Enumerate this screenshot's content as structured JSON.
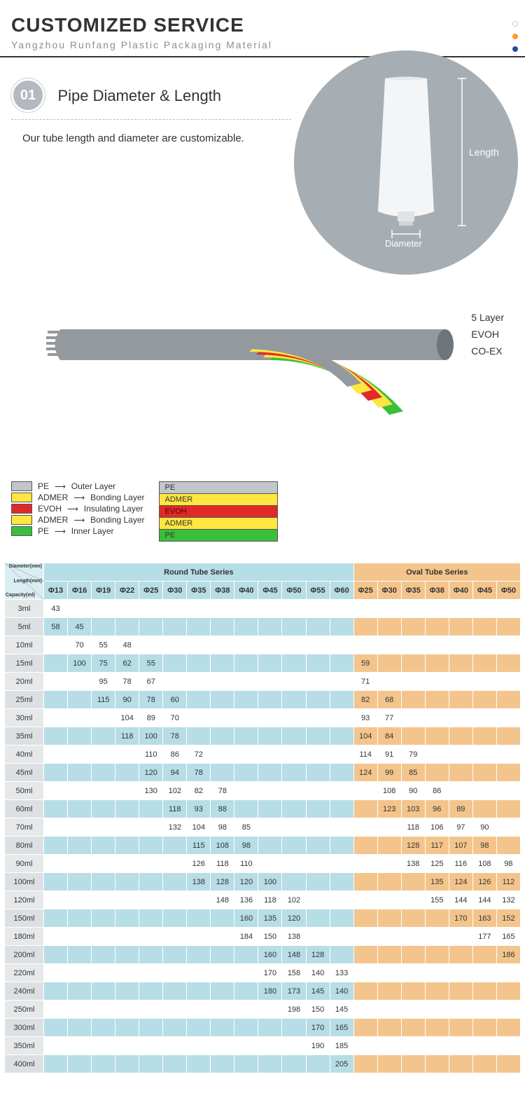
{
  "header": {
    "title": "CUSTOMIZED SERVICE",
    "subtitle": "Yangzhou Runfang Plastic Packaging Material",
    "dot_colors": [
      "#c9cdd1",
      "#ff9933",
      "#1e4fa3"
    ]
  },
  "section1": {
    "badge": "01",
    "title": "Pipe Diameter & Length",
    "desc": "Our tube length and diameter are customizable.",
    "fig_length": "Length",
    "fig_diameter": "Diameter",
    "circle_color": "#a6aeb3"
  },
  "layers": {
    "side_labels": [
      "5 Layer",
      "EVOH",
      "CO-EX"
    ],
    "stack": [
      {
        "label": "PE",
        "color": "#c2c6ca"
      },
      {
        "label": "ADMER",
        "color": "#ffe640"
      },
      {
        "label": "EVOH",
        "color": "#e02a2a"
      },
      {
        "label": "ADMER",
        "color": "#ffe640"
      },
      {
        "label": "PE",
        "color": "#3bbf3b"
      }
    ],
    "legend": [
      {
        "mat": "PE",
        "name": "Outer Layer",
        "color": "#c2c6ca"
      },
      {
        "mat": "ADMER",
        "name": "Bonding Layer",
        "color": "#ffe640"
      },
      {
        "mat": "EVOH",
        "name": "Insulating Layer",
        "color": "#e02a2a"
      },
      {
        "mat": "ADMER",
        "name": "Bonding Layer",
        "color": "#ffe640"
      },
      {
        "mat": "PE",
        "name": "Inner Layer",
        "color": "#3bbf3b"
      }
    ]
  },
  "table": {
    "corner_labels": [
      "Diameter(mm)",
      "Length(mm)",
      "Capacity(ml)"
    ],
    "groups": [
      {
        "name": "Round Tube Series",
        "diameters": [
          "Φ13",
          "Φ16",
          "Φ19",
          "Φ22",
          "Φ25",
          "Φ30",
          "Φ35",
          "Φ38",
          "Φ40",
          "Φ45",
          "Φ50",
          "Φ55",
          "Φ60"
        ],
        "alt_color": "#b7dde6"
      },
      {
        "name": "Oval Tube Series",
        "diameters": [
          "Φ25",
          "Φ30",
          "Φ35",
          "Φ38",
          "Φ40",
          "Φ45",
          "Φ50"
        ],
        "alt_color": "#f3c58c"
      }
    ],
    "capacities": [
      "3ml",
      "5ml",
      "10ml",
      "15ml",
      "20ml",
      "25ml",
      "30ml",
      "35ml",
      "40ml",
      "45ml",
      "50ml",
      "60ml",
      "70ml",
      "80ml",
      "90ml",
      "100ml",
      "120ml",
      "150ml",
      "180ml",
      "200ml",
      "220ml",
      "240ml",
      "250ml",
      "300ml",
      "350ml",
      "400ml"
    ],
    "round": [
      [
        "43",
        "",
        "",
        "",
        "",
        "",
        "",
        "",
        "",
        "",
        "",
        "",
        ""
      ],
      [
        "58",
        "45",
        "",
        "",
        "",
        "",
        "",
        "",
        "",
        "",
        "",
        "",
        ""
      ],
      [
        "",
        "70",
        "55",
        "48",
        "",
        "",
        "",
        "",
        "",
        "",
        "",
        "",
        ""
      ],
      [
        "",
        "100",
        "75",
        "62",
        "55",
        "",
        "",
        "",
        "",
        "",
        "",
        "",
        ""
      ],
      [
        "",
        "",
        "95",
        "78",
        "67",
        "",
        "",
        "",
        "",
        "",
        "",
        "",
        ""
      ],
      [
        "",
        "",
        "115",
        "90",
        "78",
        "60",
        "",
        "",
        "",
        "",
        "",
        "",
        ""
      ],
      [
        "",
        "",
        "",
        "104",
        "89",
        "70",
        "",
        "",
        "",
        "",
        "",
        "",
        ""
      ],
      [
        "",
        "",
        "",
        "118",
        "100",
        "78",
        "",
        "",
        "",
        "",
        "",
        "",
        ""
      ],
      [
        "",
        "",
        "",
        "",
        "110",
        "86",
        "72",
        "",
        "",
        "",
        "",
        "",
        ""
      ],
      [
        "",
        "",
        "",
        "",
        "120",
        "94",
        "78",
        "",
        "",
        "",
        "",
        "",
        ""
      ],
      [
        "",
        "",
        "",
        "",
        "130",
        "102",
        "82",
        "78",
        "",
        "",
        "",
        "",
        ""
      ],
      [
        "",
        "",
        "",
        "",
        "",
        "118",
        "93",
        "88",
        "",
        "",
        "",
        "",
        ""
      ],
      [
        "",
        "",
        "",
        "",
        "",
        "132",
        "104",
        "98",
        "85",
        "",
        "",
        "",
        ""
      ],
      [
        "",
        "",
        "",
        "",
        "",
        "",
        "115",
        "108",
        "98",
        "",
        "",
        "",
        ""
      ],
      [
        "",
        "",
        "",
        "",
        "",
        "",
        "126",
        "118",
        "110",
        "",
        "",
        "",
        ""
      ],
      [
        "",
        "",
        "",
        "",
        "",
        "",
        "138",
        "128",
        "120",
        "100",
        "",
        "",
        ""
      ],
      [
        "",
        "",
        "",
        "",
        "",
        "",
        "",
        "148",
        "136",
        "118",
        "102",
        "",
        ""
      ],
      [
        "",
        "",
        "",
        "",
        "",
        "",
        "",
        "",
        "160",
        "135",
        "120",
        "",
        ""
      ],
      [
        "",
        "",
        "",
        "",
        "",
        "",
        "",
        "",
        "184",
        "150",
        "138",
        "",
        ""
      ],
      [
        "",
        "",
        "",
        "",
        "",
        "",
        "",
        "",
        "",
        "160",
        "148",
        "128",
        ""
      ],
      [
        "",
        "",
        "",
        "",
        "",
        "",
        "",
        "",
        "",
        "170",
        "158",
        "140",
        "133"
      ],
      [
        "",
        "",
        "",
        "",
        "",
        "",
        "",
        "",
        "",
        "180",
        "173",
        "145",
        "140"
      ],
      [
        "",
        "",
        "",
        "",
        "",
        "",
        "",
        "",
        "",
        "",
        "198",
        "150",
        "145"
      ],
      [
        "",
        "",
        "",
        "",
        "",
        "",
        "",
        "",
        "",
        "",
        "",
        "170",
        "165"
      ],
      [
        "",
        "",
        "",
        "",
        "",
        "",
        "",
        "",
        "",
        "",
        "",
        "190",
        "185"
      ],
      [
        "",
        "",
        "",
        "",
        "",
        "",
        "",
        "",
        "",
        "",
        "",
        "",
        "205"
      ]
    ],
    "oval": [
      [
        "",
        "",
        "",
        "",
        "",
        "",
        ""
      ],
      [
        "",
        "",
        "",
        "",
        "",
        "",
        ""
      ],
      [
        "",
        "",
        "",
        "",
        "",
        "",
        ""
      ],
      [
        "59",
        "",
        "",
        "",
        "",
        "",
        ""
      ],
      [
        "71",
        "",
        "",
        "",
        "",
        "",
        ""
      ],
      [
        "82",
        "68",
        "",
        "",
        "",
        "",
        ""
      ],
      [
        "93",
        "77",
        "",
        "",
        "",
        "",
        ""
      ],
      [
        "104",
        "84",
        "",
        "",
        "",
        "",
        ""
      ],
      [
        "114",
        "91",
        "79",
        "",
        "",
        "",
        ""
      ],
      [
        "124",
        "99",
        "85",
        "",
        "",
        "",
        ""
      ],
      [
        "",
        "108",
        "90",
        "86",
        "",
        "",
        ""
      ],
      [
        "",
        "123",
        "103",
        "96",
        "89",
        "",
        ""
      ],
      [
        "",
        "",
        "118",
        "106",
        "97",
        "90",
        ""
      ],
      [
        "",
        "",
        "128",
        "117",
        "107",
        "98",
        ""
      ],
      [
        "",
        "",
        "138",
        "125",
        "116",
        "108",
        "98"
      ],
      [
        "",
        "",
        "",
        "135",
        "124",
        "126",
        "112"
      ],
      [
        "",
        "",
        "",
        "155",
        "144",
        "144",
        "132"
      ],
      [
        "",
        "",
        "",
        "",
        "170",
        "163",
        "152"
      ],
      [
        "",
        "",
        "",
        "",
        "",
        "177",
        "165"
      ],
      [
        "",
        "",
        "",
        "",
        "",
        "",
        "186"
      ],
      [
        "",
        "",
        "",
        "",
        "",
        "",
        ""
      ],
      [
        "",
        "",
        "",
        "",
        "",
        "",
        ""
      ],
      [
        "",
        "",
        "",
        "",
        "",
        "",
        ""
      ],
      [
        "",
        "",
        "",
        "",
        "",
        "",
        ""
      ],
      [
        "",
        "",
        "",
        "",
        "",
        "",
        ""
      ],
      [
        "",
        "",
        "",
        "",
        "",
        "",
        ""
      ]
    ],
    "colors": {
      "round_header": "#b7dde6",
      "round_alt": "#d9edf2",
      "oval_header": "#f3c58c",
      "cap_bg": "#e6e8ea",
      "border": "#ffffff"
    }
  }
}
